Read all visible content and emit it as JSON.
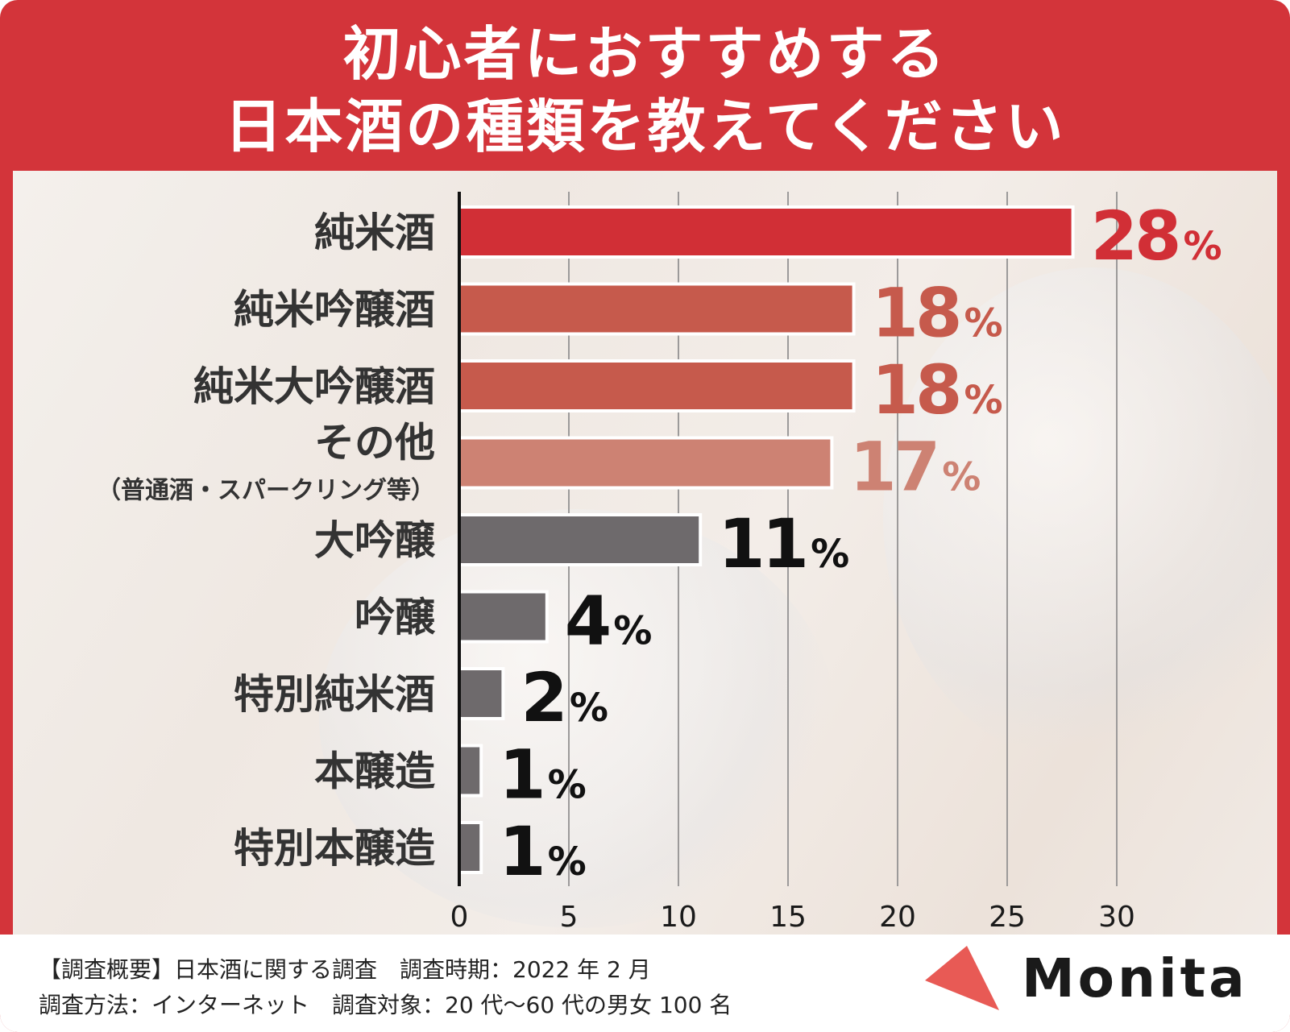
{
  "title_lines": [
    "初心者におすすめする",
    "日本酒の種類を教えてください"
  ],
  "chart_data": {
    "type": "bar",
    "orientation": "horizontal",
    "categories": [
      {
        "label": "純米酒",
        "sublabel": ""
      },
      {
        "label": "純米吟醸酒",
        "sublabel": ""
      },
      {
        "label": "純米大吟醸酒",
        "sublabel": ""
      },
      {
        "label": "その他",
        "sublabel": "（普通酒・スパークリング等）"
      },
      {
        "label": "大吟醸",
        "sublabel": ""
      },
      {
        "label": "吟醸",
        "sublabel": ""
      },
      {
        "label": "特別純米酒",
        "sublabel": ""
      },
      {
        "label": "本醸造",
        "sublabel": ""
      },
      {
        "label": "特別本醸造",
        "sublabel": ""
      }
    ],
    "values": [
      28,
      18,
      18,
      17,
      11,
      4,
      2,
      1,
      1
    ],
    "value_labels": [
      "28",
      "18",
      "18",
      "17",
      "11",
      "4",
      "2",
      "1",
      "1"
    ],
    "unit": "%",
    "bar_colors": [
      "#d12f36",
      "#c65a4c",
      "#c65a4c",
      "#cd8273",
      "#6e6a6c",
      "#6e6a6c",
      "#6e6a6c",
      "#6e6a6c",
      "#6e6a6c"
    ],
    "label_colors": [
      "#d12f36",
      "#c65a4c",
      "#c65a4c",
      "#cd8273",
      "#111111",
      "#111111",
      "#111111",
      "#111111",
      "#111111"
    ],
    "xticks": [
      "0",
      "5",
      "10",
      "15",
      "20",
      "25",
      "30"
    ],
    "xlim": [
      0,
      30
    ],
    "grid": true
  },
  "footer": {
    "line1": "【調査概要】日本酒に関する調査　調査時期：2022 年 2 月",
    "line2": "調査方法：インターネット　調査対象：20 代～60 代の男女 100 名"
  },
  "brand": {
    "name": "Monita",
    "logo_color": "#e85a55"
  }
}
